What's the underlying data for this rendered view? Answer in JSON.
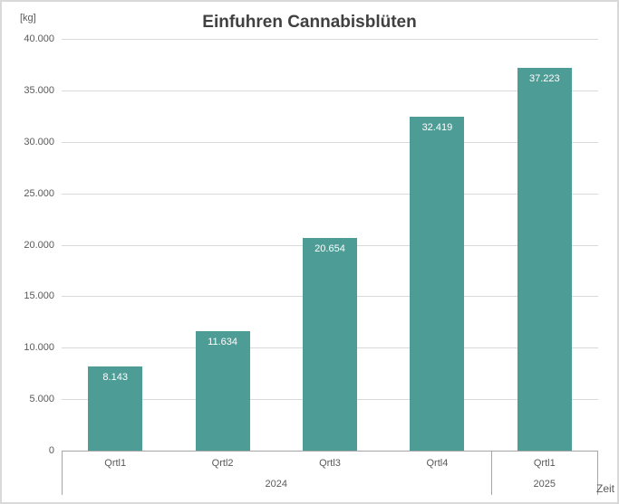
{
  "chart_data": {
    "type": "bar",
    "title": "Einfuhren Cannabisblüten",
    "ylabel": "[kg]",
    "xlabel": "Zeit",
    "categories": [
      "Qrtl1",
      "Qrtl2",
      "Qrtl3",
      "Qrtl4",
      "Qrtl1"
    ],
    "groups": [
      {
        "label": "2024",
        "span": 4
      },
      {
        "label": "2025",
        "span": 1
      }
    ],
    "values": [
      8143,
      11634,
      20654,
      32419,
      37223
    ],
    "value_labels": [
      "8.143",
      "11.634",
      "20.654",
      "32.419",
      "37.223"
    ],
    "ylim": [
      0,
      40000
    ],
    "ytick_interval": 5000,
    "ytick_labels": [
      "40.000",
      "35.000",
      "30.000",
      "25.000",
      "20.000",
      "15.000",
      "10.000",
      "5.000",
      "0"
    ],
    "grid": true,
    "legend_position": "none",
    "colors": {
      "bar": "#4D9C96",
      "title_text": "#404040",
      "axis_text": "#595959",
      "value_label_text": "#FFFFFF",
      "gridline": "#D9D9D9",
      "axis_line": "#A6A6A6",
      "chart_border": "#D9D9D9"
    }
  }
}
